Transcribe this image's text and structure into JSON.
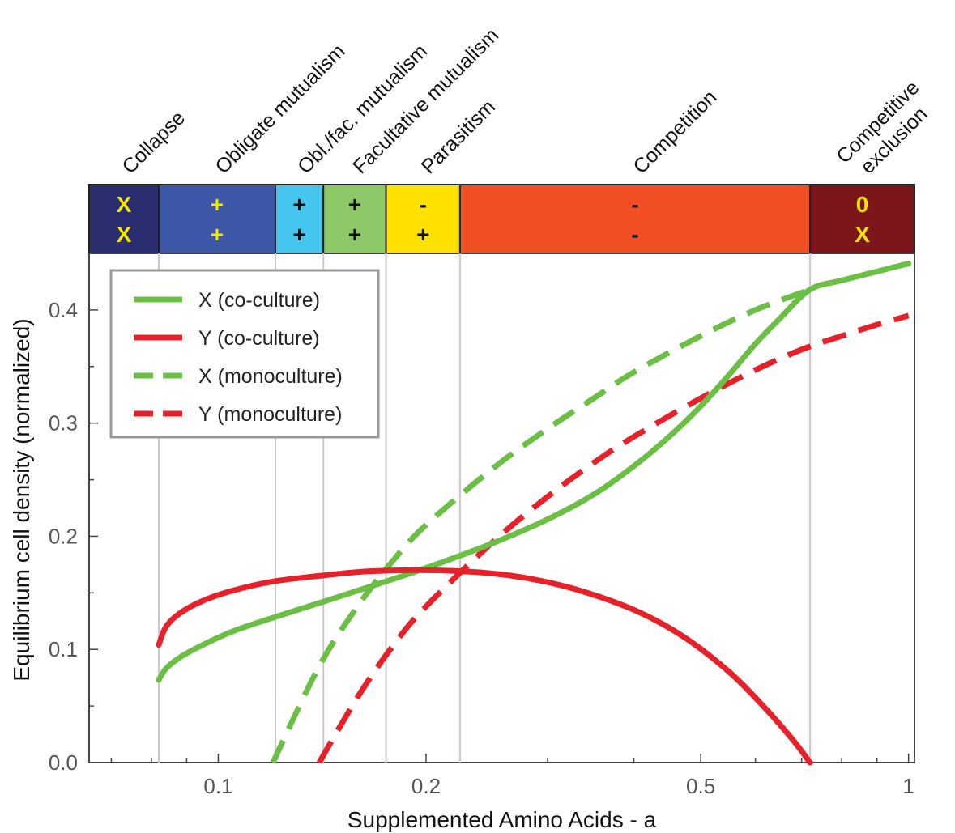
{
  "chart_data": {
    "type": "line",
    "xlabel": "Supplemented Amino Acids - a",
    "ylabel": "Equilibrium cell density (normalized)",
    "xscale": "log",
    "xlim": [
      0.065,
      1.02
    ],
    "ylim": [
      0,
      0.45
    ],
    "x_ticks": [
      {
        "value": 0.1,
        "label": "0.1"
      },
      {
        "value": 0.2,
        "label": "0.2"
      },
      {
        "value": 0.5,
        "label": "0.5"
      },
      {
        "value": 1,
        "label": "1"
      }
    ],
    "y_ticks": [
      {
        "value": 0.0,
        "label": "0.0"
      },
      {
        "value": 0.1,
        "label": "0.1"
      },
      {
        "value": 0.2,
        "label": "0.2"
      },
      {
        "value": 0.3,
        "label": "0.3"
      },
      {
        "value": 0.4,
        "label": "0.4"
      }
    ],
    "grid": "vertical lines at regime boundaries",
    "legend_position": "top-left",
    "regimes": [
      {
        "name": "Collapse",
        "from": 0.065,
        "to": 0.082,
        "color": "#2a2d6e",
        "sign_color": "#f3e600",
        "signs": [
          "X",
          "X"
        ]
      },
      {
        "name": "Obligate mutualism",
        "from": 0.082,
        "to": 0.121,
        "color": "#3d56a6",
        "sign_color": "#f3e600",
        "signs": [
          "+",
          "+"
        ]
      },
      {
        "name": "Obl./fac. mutualism",
        "from": 0.121,
        "to": 0.142,
        "color": "#45c6ef",
        "sign_color": "#111111",
        "signs": [
          "+",
          "+"
        ]
      },
      {
        "name": "Facultative mutualism",
        "from": 0.142,
        "to": 0.175,
        "color": "#8cc866",
        "sign_color": "#111111",
        "signs": [
          "+",
          "+"
        ]
      },
      {
        "name": "Parasitism",
        "from": 0.175,
        "to": 0.224,
        "color": "#ffe100",
        "sign_color": "#111111",
        "signs": [
          "-",
          "+"
        ]
      },
      {
        "name": "Competition",
        "from": 0.224,
        "to": 0.72,
        "color": "#f04e23",
        "sign_color": "#111111",
        "signs": [
          "-",
          "-"
        ]
      },
      {
        "name": "Competitive\nexclusion",
        "from": 0.72,
        "to": 1.02,
        "color": "#7c161b",
        "sign_color": "#f3e600",
        "signs": [
          "0",
          "X"
        ]
      }
    ],
    "series": [
      {
        "name": "X (co-culture)",
        "color": "#6cbf45",
        "dash": "solid",
        "x": [
          0.082,
          0.084,
          0.088,
          0.095,
          0.105,
          0.12,
          0.14,
          0.165,
          0.2,
          0.25,
          0.3,
          0.35,
          0.4,
          0.45,
          0.5,
          0.55,
          0.6,
          0.65,
          0.72,
          0.8,
          0.9,
          1.0
        ],
        "y": [
          0.073,
          0.083,
          0.093,
          0.104,
          0.116,
          0.128,
          0.141,
          0.155,
          0.172,
          0.194,
          0.215,
          0.237,
          0.262,
          0.288,
          0.315,
          0.343,
          0.37,
          0.392,
          0.418,
          0.426,
          0.434,
          0.441
        ]
      },
      {
        "name": "Y (co-culture)",
        "color": "#e52229",
        "dash": "solid",
        "x": [
          0.082,
          0.084,
          0.088,
          0.095,
          0.105,
          0.12,
          0.14,
          0.165,
          0.2,
          0.24,
          0.28,
          0.33,
          0.4,
          0.47,
          0.55,
          0.62,
          0.68,
          0.72
        ],
        "y": [
          0.104,
          0.12,
          0.132,
          0.143,
          0.152,
          0.16,
          0.165,
          0.169,
          0.17,
          0.168,
          0.163,
          0.153,
          0.135,
          0.112,
          0.08,
          0.048,
          0.02,
          0.0
        ]
      },
      {
        "name": "X (monoculture)",
        "color": "#6cbf45",
        "dash": "dashed",
        "x": [
          0.12,
          0.14,
          0.16,
          0.18,
          0.2,
          0.25,
          0.3,
          0.35,
          0.4,
          0.5,
          0.6,
          0.72
        ],
        "y": [
          0.0,
          0.085,
          0.14,
          0.18,
          0.21,
          0.26,
          0.295,
          0.322,
          0.345,
          0.377,
          0.4,
          0.418
        ]
      },
      {
        "name": "Y (monoculture)",
        "color": "#e52229",
        "dash": "dashed",
        "x": [
          0.14,
          0.16,
          0.18,
          0.2,
          0.25,
          0.3,
          0.35,
          0.4,
          0.5,
          0.6,
          0.7,
          0.8,
          0.9,
          1.0
        ],
        "y": [
          0.0,
          0.06,
          0.105,
          0.138,
          0.195,
          0.235,
          0.265,
          0.288,
          0.322,
          0.347,
          0.365,
          0.377,
          0.387,
          0.395
        ]
      }
    ]
  }
}
